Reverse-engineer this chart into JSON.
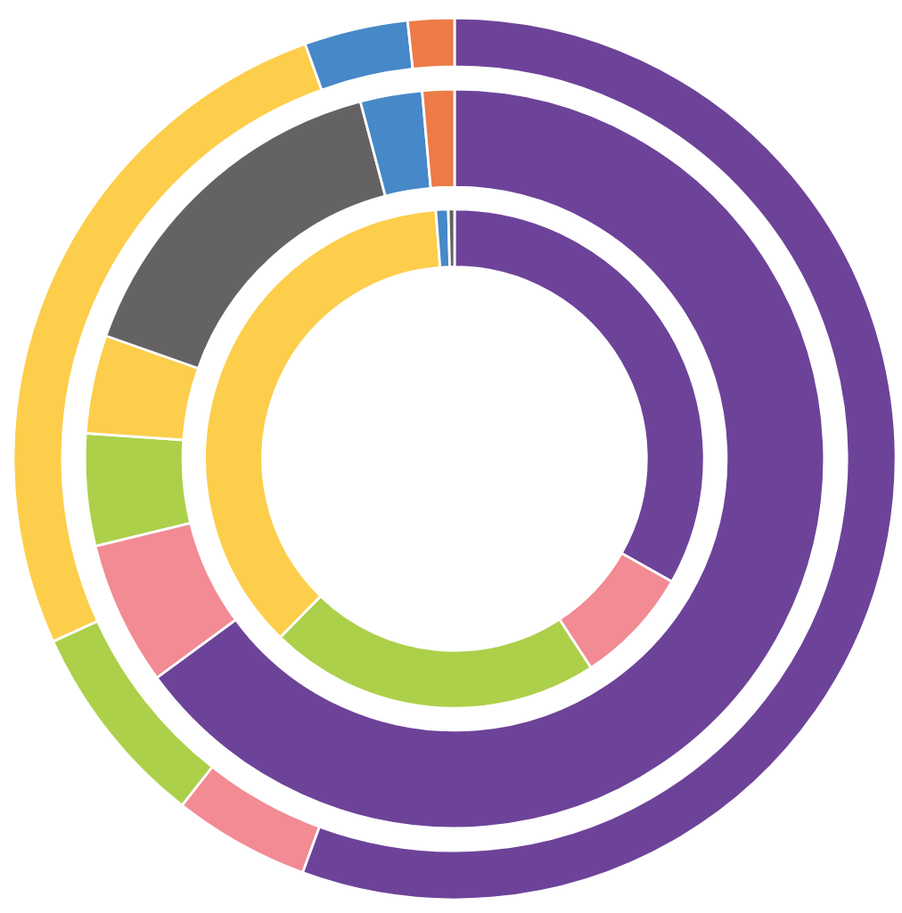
{
  "chart_data": {
    "type": "donut",
    "categories": [
      null,
      null,
      null,
      null,
      null,
      null,
      null
    ],
    "series": [
      {
        "values": [
          55.6,
          5.0,
          7.6,
          26.3,
          3.8,
          1.7,
          null
        ],
        "colors": [
          "#6d4399",
          "#f28b94",
          "#acd04a",
          "#fdce4b",
          "#4788c8",
          "#ec7b47",
          null
        ]
      },
      {
        "values": [
          64.9,
          6.3,
          4.9,
          4.3,
          15.5,
          2.7,
          1.4
        ],
        "colors": [
          "#6d4399",
          "#f28b94",
          "#acd04a",
          "#fdce4b",
          "#656263",
          "#4788c8",
          "#ec7b47"
        ]
      },
      {
        "values": [
          33.2,
          7.6,
          21.5,
          36.5,
          0.8,
          0.4,
          null
        ],
        "colors": [
          "#6d4399",
          "#f28b94",
          "#acd04a",
          "#fdce4b",
          "#4788c8",
          "#656263",
          null
        ]
      }
    ]
  }
}
